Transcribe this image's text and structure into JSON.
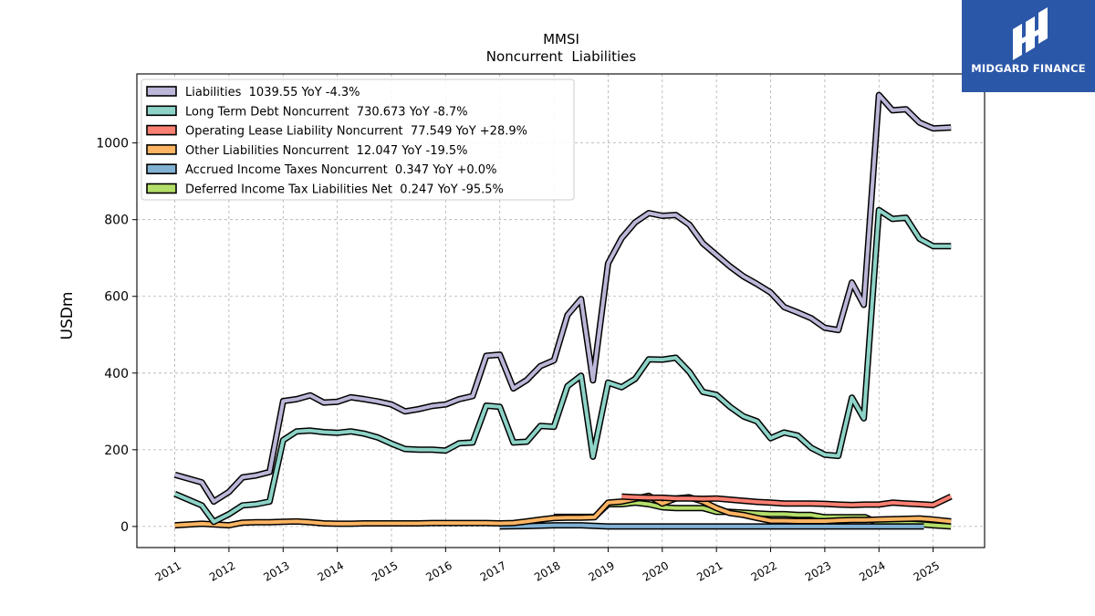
{
  "chart_data": {
    "type": "line",
    "title": "MMSI",
    "subtitle": "Noncurrent  Liabilities",
    "ylabel": "USDm",
    "xlabel": "",
    "xlim": [
      2010.3,
      2025.95
    ],
    "ylim": [
      -55,
      1180
    ],
    "grid": true,
    "legend_position": "top-left",
    "x_ticks": [
      2011,
      2012,
      2013,
      2014,
      2015,
      2016,
      2017,
      2018,
      2019,
      2020,
      2021,
      2022,
      2023,
      2024,
      2025
    ],
    "x_tick_labels": [
      "2011",
      "2012",
      "2013",
      "2014",
      "2015",
      "2016",
      "2017",
      "2018",
      "2019",
      "2020",
      "2021",
      "2022",
      "2023",
      "2024",
      "2025"
    ],
    "y_ticks": [
      0,
      200,
      400,
      600,
      800,
      1000
    ],
    "y_tick_labels": [
      "0",
      "200",
      "400",
      "600",
      "800",
      "1000"
    ],
    "series": [
      {
        "name": "Liabilities",
        "legend": "Liabilities  1039.55 YoY -4.3%",
        "color": "#bcb7d8",
        "points": [
          [
            2011.0,
            135
          ],
          [
            2011.25,
            125
          ],
          [
            2011.5,
            115
          ],
          [
            2011.72,
            65
          ],
          [
            2012.0,
            90
          ],
          [
            2012.25,
            128
          ],
          [
            2012.5,
            133
          ],
          [
            2012.75,
            142
          ],
          [
            2013.0,
            327
          ],
          [
            2013.25,
            332
          ],
          [
            2013.5,
            342
          ],
          [
            2013.75,
            323
          ],
          [
            2014.0,
            325
          ],
          [
            2014.25,
            337
          ],
          [
            2014.5,
            332
          ],
          [
            2014.75,
            326
          ],
          [
            2015.0,
            318
          ],
          [
            2015.25,
            300
          ],
          [
            2015.5,
            306
          ],
          [
            2015.75,
            314
          ],
          [
            2016.0,
            318
          ],
          [
            2016.25,
            332
          ],
          [
            2016.5,
            340
          ],
          [
            2016.75,
            445
          ],
          [
            2017.0,
            448
          ],
          [
            2017.25,
            360
          ],
          [
            2017.5,
            382
          ],
          [
            2017.75,
            418
          ],
          [
            2018.0,
            433
          ],
          [
            2018.25,
            551
          ],
          [
            2018.5,
            593
          ],
          [
            2018.72,
            381
          ],
          [
            2019.0,
            686
          ],
          [
            2019.25,
            752
          ],
          [
            2019.5,
            793
          ],
          [
            2019.75,
            817
          ],
          [
            2020.0,
            810
          ],
          [
            2020.25,
            812
          ],
          [
            2020.5,
            787
          ],
          [
            2020.75,
            738
          ],
          [
            2021.0,
            708
          ],
          [
            2021.25,
            678
          ],
          [
            2021.5,
            652
          ],
          [
            2021.75,
            632
          ],
          [
            2022.0,
            610
          ],
          [
            2022.25,
            572
          ],
          [
            2022.5,
            558
          ],
          [
            2022.75,
            543
          ],
          [
            2023.0,
            518
          ],
          [
            2023.25,
            512
          ],
          [
            2023.5,
            636
          ],
          [
            2023.72,
            578
          ],
          [
            2024.0,
            1125
          ],
          [
            2024.25,
            1085
          ],
          [
            2024.5,
            1088
          ],
          [
            2024.75,
            1053
          ],
          [
            2025.0,
            1038
          ],
          [
            2025.33,
            1040
          ]
        ]
      },
      {
        "name": "Long Term Debt Noncurrent",
        "legend": "Long Term Debt Noncurrent  730.673 YoY -8.7%",
        "color": "#8dd3c7",
        "points": [
          [
            2011.0,
            85
          ],
          [
            2011.25,
            70
          ],
          [
            2011.5,
            55
          ],
          [
            2011.72,
            12
          ],
          [
            2012.0,
            32
          ],
          [
            2012.25,
            55
          ],
          [
            2012.5,
            58
          ],
          [
            2012.75,
            65
          ],
          [
            2013.0,
            225
          ],
          [
            2013.25,
            248
          ],
          [
            2013.5,
            250
          ],
          [
            2013.75,
            246
          ],
          [
            2014.0,
            244
          ],
          [
            2014.25,
            248
          ],
          [
            2014.5,
            242
          ],
          [
            2014.75,
            232
          ],
          [
            2015.0,
            216
          ],
          [
            2015.25,
            202
          ],
          [
            2015.5,
            200
          ],
          [
            2015.75,
            200
          ],
          [
            2016.0,
            198
          ],
          [
            2016.25,
            217
          ],
          [
            2016.5,
            219
          ],
          [
            2016.75,
            315
          ],
          [
            2017.0,
            312
          ],
          [
            2017.25,
            219
          ],
          [
            2017.5,
            221
          ],
          [
            2017.75,
            262
          ],
          [
            2018.0,
            260
          ],
          [
            2018.25,
            366
          ],
          [
            2018.5,
            393
          ],
          [
            2018.72,
            182
          ],
          [
            2019.0,
            375
          ],
          [
            2019.25,
            363
          ],
          [
            2019.5,
            385
          ],
          [
            2019.75,
            436
          ],
          [
            2020.0,
            435
          ],
          [
            2020.25,
            440
          ],
          [
            2020.5,
            403
          ],
          [
            2020.75,
            351
          ],
          [
            2021.0,
            343
          ],
          [
            2021.25,
            312
          ],
          [
            2021.5,
            287
          ],
          [
            2021.75,
            274
          ],
          [
            2022.0,
            230
          ],
          [
            2022.25,
            245
          ],
          [
            2022.5,
            237
          ],
          [
            2022.75,
            205
          ],
          [
            2023.0,
            187
          ],
          [
            2023.25,
            184
          ],
          [
            2023.5,
            336
          ],
          [
            2023.72,
            282
          ],
          [
            2024.0,
            825
          ],
          [
            2024.25,
            802
          ],
          [
            2024.5,
            805
          ],
          [
            2024.75,
            750
          ],
          [
            2025.0,
            731
          ],
          [
            2025.33,
            731
          ]
        ]
      },
      {
        "name": "Operating Lease Liability Noncurrent",
        "legend": "Operating Lease Liability Noncurrent  77.549 YoY +28.9%",
        "color": "#fb8072",
        "points": [
          [
            2019.25,
            78
          ],
          [
            2019.5,
            76
          ],
          [
            2019.75,
            75
          ],
          [
            2020.0,
            75
          ],
          [
            2020.25,
            73
          ],
          [
            2020.5,
            73
          ],
          [
            2020.75,
            72
          ],
          [
            2021.0,
            73
          ],
          [
            2021.25,
            70
          ],
          [
            2021.5,
            67
          ],
          [
            2021.75,
            64
          ],
          [
            2022.0,
            62
          ],
          [
            2022.25,
            60
          ],
          [
            2022.5,
            60
          ],
          [
            2022.75,
            60
          ],
          [
            2023.0,
            59
          ],
          [
            2023.25,
            57
          ],
          [
            2023.5,
            56
          ],
          [
            2023.75,
            57
          ],
          [
            2024.0,
            57
          ],
          [
            2024.25,
            62
          ],
          [
            2024.5,
            60
          ],
          [
            2024.75,
            58
          ],
          [
            2025.0,
            56
          ],
          [
            2025.33,
            78
          ]
        ]
      },
      {
        "name": "Other Liabilities Noncurrent",
        "legend": "Other Liabilities Noncurrent  12.047 YoY -19.5%",
        "color": "#fdb462",
        "points": [
          [
            2011.0,
            3
          ],
          [
            2011.25,
            5
          ],
          [
            2011.5,
            7
          ],
          [
            2011.75,
            5
          ],
          [
            2012.0,
            3
          ],
          [
            2012.25,
            10
          ],
          [
            2012.5,
            11
          ],
          [
            2012.75,
            11
          ],
          [
            2013.0,
            12
          ],
          [
            2013.25,
            13
          ],
          [
            2013.5,
            11
          ],
          [
            2013.75,
            8
          ],
          [
            2014.0,
            7
          ],
          [
            2014.25,
            7
          ],
          [
            2014.5,
            8
          ],
          [
            2014.75,
            8
          ],
          [
            2015.0,
            8
          ],
          [
            2015.25,
            8
          ],
          [
            2015.5,
            8
          ],
          [
            2015.75,
            9
          ],
          [
            2016.0,
            9
          ],
          [
            2016.25,
            9
          ],
          [
            2016.5,
            9
          ],
          [
            2016.75,
            9
          ],
          [
            2017.0,
            8
          ],
          [
            2017.25,
            9
          ],
          [
            2017.5,
            13
          ],
          [
            2017.75,
            18
          ],
          [
            2018.0,
            22
          ],
          [
            2018.25,
            23
          ],
          [
            2018.5,
            23
          ],
          [
            2018.75,
            24
          ],
          [
            2019.0,
            62
          ],
          [
            2019.25,
            65
          ],
          [
            2019.5,
            72
          ],
          [
            2019.75,
            80
          ],
          [
            2020.0,
            60
          ],
          [
            2020.25,
            73
          ],
          [
            2020.5,
            76
          ],
          [
            2020.75,
            65
          ],
          [
            2021.0,
            48
          ],
          [
            2021.25,
            35
          ],
          [
            2021.5,
            30
          ],
          [
            2021.75,
            22
          ],
          [
            2022.0,
            15
          ],
          [
            2022.25,
            15
          ],
          [
            2022.5,
            14
          ],
          [
            2022.75,
            14
          ],
          [
            2023.0,
            14
          ],
          [
            2023.25,
            16
          ],
          [
            2023.5,
            17
          ],
          [
            2023.75,
            17
          ],
          [
            2024.0,
            18
          ],
          [
            2024.25,
            19
          ],
          [
            2024.5,
            20
          ],
          [
            2024.75,
            21
          ],
          [
            2025.0,
            18
          ],
          [
            2025.33,
            13
          ]
        ]
      },
      {
        "name": "Accrued Income Taxes Noncurrent",
        "legend": "Accrued Income Taxes Noncurrent  0.347 YoY +0.0%",
        "color": "#80b1d3",
        "points": [
          [
            2017.0,
            0
          ],
          [
            2017.5,
            1
          ],
          [
            2018.0,
            3
          ],
          [
            2018.5,
            3
          ],
          [
            2019.0,
            0
          ],
          [
            2019.5,
            0
          ],
          [
            2020.0,
            0
          ],
          [
            2020.5,
            0
          ],
          [
            2021.0,
            0
          ],
          [
            2021.5,
            0
          ],
          [
            2022.0,
            0
          ],
          [
            2022.5,
            0
          ],
          [
            2023.0,
            0
          ],
          [
            2023.5,
            0
          ],
          [
            2024.0,
            0
          ],
          [
            2024.5,
            0
          ],
          [
            2024.83,
            0
          ]
        ]
      },
      {
        "name": "Deferred Income Tax Liabilities Net",
        "legend": "Deferred Income Tax Liabilities Net  0.247 YoY -95.5%",
        "color": "#b3de69",
        "points": [
          [
            2018.0,
            25
          ],
          [
            2018.25,
            25
          ],
          [
            2018.5,
            25
          ],
          [
            2018.75,
            25
          ],
          [
            2019.0,
            58
          ],
          [
            2019.25,
            58
          ],
          [
            2019.5,
            62
          ],
          [
            2019.75,
            58
          ],
          [
            2020.0,
            50
          ],
          [
            2020.25,
            48
          ],
          [
            2020.5,
            48
          ],
          [
            2020.75,
            48
          ],
          [
            2021.0,
            38
          ],
          [
            2021.25,
            38
          ],
          [
            2021.5,
            36
          ],
          [
            2021.75,
            34
          ],
          [
            2022.0,
            32
          ],
          [
            2022.25,
            32
          ],
          [
            2022.5,
            30
          ],
          [
            2022.75,
            30
          ],
          [
            2023.0,
            24
          ],
          [
            2023.25,
            24
          ],
          [
            2023.5,
            24
          ],
          [
            2023.75,
            24
          ],
          [
            2024.0,
            8
          ],
          [
            2024.25,
            8
          ],
          [
            2024.5,
            8
          ],
          [
            2024.75,
            6
          ],
          [
            2025.0,
            3
          ],
          [
            2025.33,
            0
          ]
        ]
      }
    ]
  },
  "logo": {
    "text": "MIDGARD FINANCE",
    "background": "#2b57a8"
  }
}
